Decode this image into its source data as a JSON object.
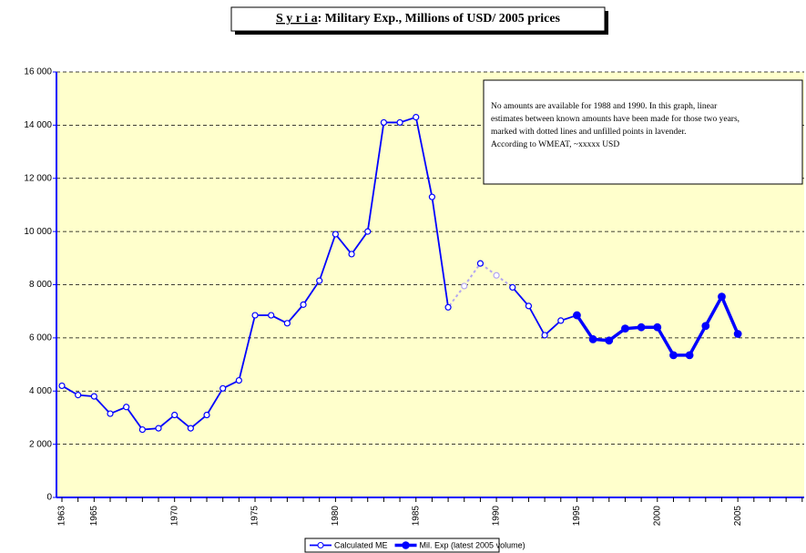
{
  "chart_data": {
    "type": "line",
    "title_country": "S y r i a",
    "title": ": Military Exp., Millions of USD/ 2005 prices",
    "annotation": [
      "No amounts are available for 1988 and 1990. In this graph, linear",
      "estimates between known amounts have been made for those two years,",
      "marked with dotted lines and unfilled points in lavender.",
      "According to WMEAT, ~xxxxx USD"
    ],
    "categories": [
      "1963",
      null,
      "1965",
      null,
      null,
      null,
      null,
      "1970",
      null,
      null,
      null,
      null,
      "1975",
      null,
      null,
      null,
      null,
      "1980",
      null,
      null,
      null,
      null,
      "1985",
      null,
      null,
      null,
      null,
      "1990",
      null,
      null,
      null,
      null,
      "1995",
      null,
      null,
      null,
      null,
      "2000",
      null,
      null,
      null,
      null,
      "2005",
      null,
      null,
      null,
      null
    ],
    "series": [
      {
        "name": "Calculated ME",
        "color": "#0000ff",
        "values": [
          4200,
          3850,
          3800,
          3150,
          3400,
          2550,
          2600,
          3100,
          2600,
          3100,
          4100,
          4400,
          6850,
          6850,
          6550,
          7250,
          8150,
          9900,
          9150,
          10000,
          14100,
          14100,
          14300,
          11300,
          7150,
          null,
          8800,
          null,
          7900,
          7200,
          6100,
          6650,
          6850,
          null,
          null,
          null,
          null,
          null,
          null,
          null,
          null,
          null,
          null,
          null,
          null,
          null,
          null
        ]
      },
      {
        "name": "Mil. Exp (latest 2005 volume)",
        "color": "#0000ff",
        "values": [
          null,
          null,
          null,
          null,
          null,
          null,
          null,
          null,
          null,
          null,
          null,
          null,
          null,
          null,
          null,
          null,
          null,
          null,
          null,
          null,
          null,
          null,
          null,
          null,
          null,
          null,
          null,
          null,
          null,
          null,
          null,
          null,
          6850,
          5950,
          5900,
          6350,
          6400,
          6400,
          5350,
          5350,
          6450,
          7550,
          6150,
          null,
          null,
          null,
          null
        ]
      }
    ],
    "estimates": {
      "color": "#b4a6f0",
      "values": [
        null,
        null,
        null,
        null,
        null,
        null,
        null,
        null,
        null,
        null,
        null,
        null,
        null,
        null,
        null,
        null,
        null,
        null,
        null,
        null,
        null,
        null,
        null,
        null,
        null,
        7950,
        null,
        8350,
        null,
        null,
        null,
        null,
        null,
        null,
        null,
        null,
        null,
        null,
        null,
        null,
        null,
        null,
        null,
        null,
        null,
        null,
        null
      ]
    },
    "ylim": [
      0,
      16000
    ],
    "yticks": [
      0,
      {
        "value": 2000,
        "label": "2 000"
      },
      {
        "value": 4000,
        "label": "4 000"
      },
      {
        "value": 6000,
        "label": "6 000"
      },
      {
        "value": 8000,
        "label": "8 000"
      },
      {
        "value": 10000,
        "label": "10 000"
      },
      {
        "value": 12000,
        "label": "12 000"
      },
      {
        "value": 14000,
        "label": "14 000"
      },
      {
        "value": 16000,
        "label": "16 000"
      }
    ],
    "grid": true,
    "plot_background": "#ffffcc"
  }
}
